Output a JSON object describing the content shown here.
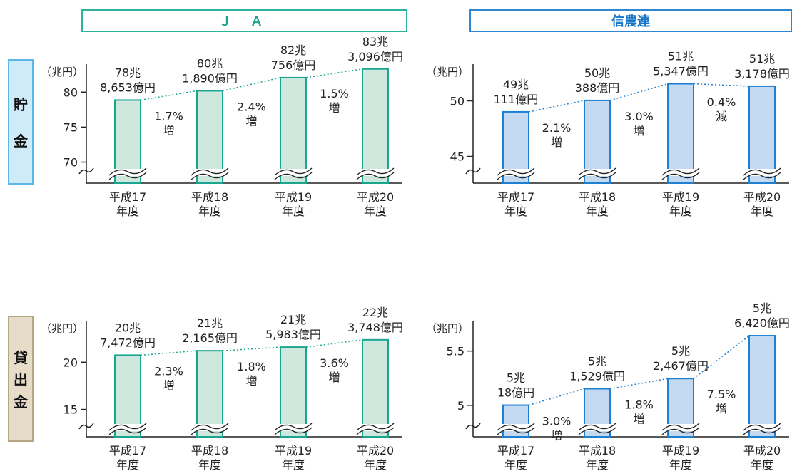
{
  "headers": {
    "ja": "Ｊ Ａ",
    "shinnoren": "信農連"
  },
  "row_labels": {
    "chokin": [
      "貯",
      "金"
    ],
    "kashidashi": [
      "貸",
      "出",
      "金"
    ]
  },
  "colors": {
    "ja_bar_fill": "#cfe8de",
    "ja_bar_stroke": "#1aa58e",
    "sn_bar_fill": "#c3daf2",
    "sn_bar_stroke": "#1f7fd1",
    "ja_trend": "#1aa58e",
    "sn_trend": "#1f7fd1"
  },
  "chart_data": [
    {
      "id": "ja-chokin",
      "type": "bar",
      "unit": "（兆円）",
      "categories": [
        "平成17年度",
        "平成18年度",
        "平成19年度",
        "平成20年度"
      ],
      "values": [
        78.8653,
        80.189,
        82.0756,
        83.3096
      ],
      "ylim": [
        67,
        84
      ],
      "yticks": [
        70,
        75,
        80
      ],
      "value_labels": [
        [
          "78兆",
          "8,653億円"
        ],
        [
          "80兆",
          "1,890億円"
        ],
        [
          "82兆",
          "756億円"
        ],
        [
          "83兆",
          "3,096億円"
        ]
      ],
      "growth_labels": [
        [
          "1.7%",
          "増"
        ],
        [
          "2.4%",
          "増"
        ],
        [
          "1.5%",
          "増"
        ]
      ],
      "axis_break": true
    },
    {
      "id": "sn-chokin",
      "type": "bar",
      "unit": "（兆円）",
      "categories": [
        "平成17年度",
        "平成18年度",
        "平成19年度",
        "平成20年度"
      ],
      "values": [
        49.0111,
        50.0388,
        51.5347,
        51.3178
      ],
      "ylim": [
        42.6,
        53.3
      ],
      "yticks": [
        45,
        50
      ],
      "value_labels": [
        [
          "49兆",
          "111億円"
        ],
        [
          "50兆",
          "388億円"
        ],
        [
          "51兆",
          "5,347億円"
        ],
        [
          "51兆",
          "3,178億円"
        ]
      ],
      "growth_labels": [
        [
          "2.1%",
          "増"
        ],
        [
          "3.0%",
          "増"
        ],
        [
          "0.4%",
          "減"
        ]
      ],
      "axis_break": true
    },
    {
      "id": "ja-kashidashi",
      "type": "bar",
      "unit": "（兆円）",
      "categories": [
        "平成17年度",
        "平成18年度",
        "平成19年度",
        "平成20年度"
      ],
      "values": [
        20.7472,
        21.2165,
        21.5983,
        22.3748
      ],
      "ylim": [
        12.1,
        24.4
      ],
      "yticks": [
        15,
        20
      ],
      "value_labels": [
        [
          "20兆",
          "7,472億円"
        ],
        [
          "21兆",
          "2,165億円"
        ],
        [
          "21兆",
          "5,983億円"
        ],
        [
          "22兆",
          "3,748億円"
        ]
      ],
      "growth_labels": [
        [
          "2.3%",
          "増"
        ],
        [
          "1.8%",
          "増"
        ],
        [
          "3.6%",
          "増"
        ]
      ],
      "axis_break": true
    },
    {
      "id": "sn-kashidashi",
      "type": "bar",
      "unit": "（兆円）",
      "categories": [
        "平成17年度",
        "平成18年度",
        "平成19年度",
        "平成20年度"
      ],
      "values": [
        5.0018,
        5.1529,
        5.2467,
        5.642
      ],
      "ylim": [
        4.71,
        5.78
      ],
      "yticks": [
        5.0,
        5.5
      ],
      "value_labels": [
        [
          "5兆",
          "18億円"
        ],
        [
          "5兆",
          "1,529億円"
        ],
        [
          "5兆",
          "2,467億円"
        ],
        [
          "5兆",
          "6,420億円"
        ]
      ],
      "growth_labels": [
        [
          "3.0%",
          "増"
        ],
        [
          "1.8%",
          "増"
        ],
        [
          "7.5%",
          "増"
        ]
      ],
      "axis_break": true
    }
  ]
}
